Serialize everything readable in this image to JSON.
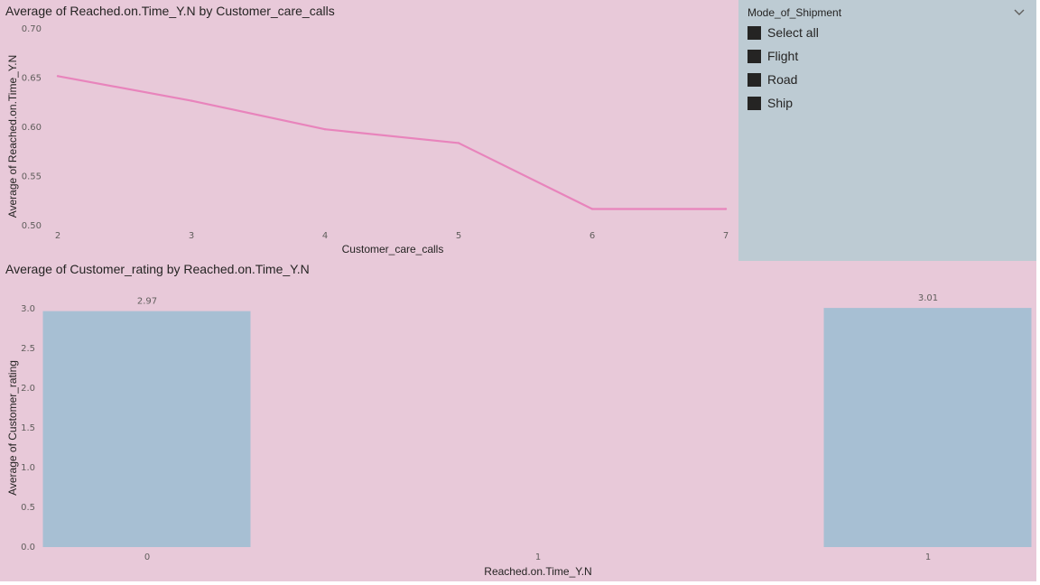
{
  "line_chart": {
    "title": "Average of Reached.on.Time_Y.N by Customer_care_calls"
  },
  "bar_chart": {
    "title": "Average of Customer_rating by Reached.on.Time_Y.N"
  },
  "slicer": {
    "header": "Mode_of_Shipment",
    "items": [
      {
        "label": "Select all",
        "checked": true
      },
      {
        "label": "Flight",
        "checked": true
      },
      {
        "label": "Road",
        "checked": true
      },
      {
        "label": "Ship",
        "checked": true
      }
    ]
  },
  "colors": {
    "canvas_background": "#e8c9d9",
    "line_color": "#e884bc",
    "bar_color": "#a7bfd3",
    "slicer_background": "#bdcbd3"
  },
  "chart_data": [
    {
      "type": "line",
      "title": "Average of Reached.on.Time_Y.N by Customer_care_calls",
      "xlabel": "Customer_care_calls",
      "ylabel": "Average of Reached.on.Time_Y.N",
      "x": [
        2,
        3,
        4,
        5,
        6,
        7
      ],
      "y_ticks": [
        "0.70",
        "0.65",
        "0.60",
        "0.55",
        "0.50"
      ],
      "ylim": [
        0.5,
        0.7
      ],
      "series": [
        {
          "values": [
            0.652,
            0.627,
            0.598,
            0.584,
            0.517,
            0.517
          ]
        }
      ],
      "grid": false
    },
    {
      "type": "bar",
      "title": "Average of Customer_rating by Reached.on.Time_Y.N",
      "xlabel": "Reached.on.Time_Y.N",
      "ylabel": "Average of Customer_rating",
      "categories": [
        "0",
        "1",
        "1"
      ],
      "values": [
        2.97,
        null,
        3.01
      ],
      "data_labels": [
        "2.97",
        "",
        "3.01"
      ],
      "y_ticks": [
        "3.0",
        "2.5",
        "2.0",
        "1.5",
        "1.0",
        "0.5",
        "0.0"
      ],
      "ylim": [
        0,
        3
      ],
      "grid": false
    }
  ]
}
